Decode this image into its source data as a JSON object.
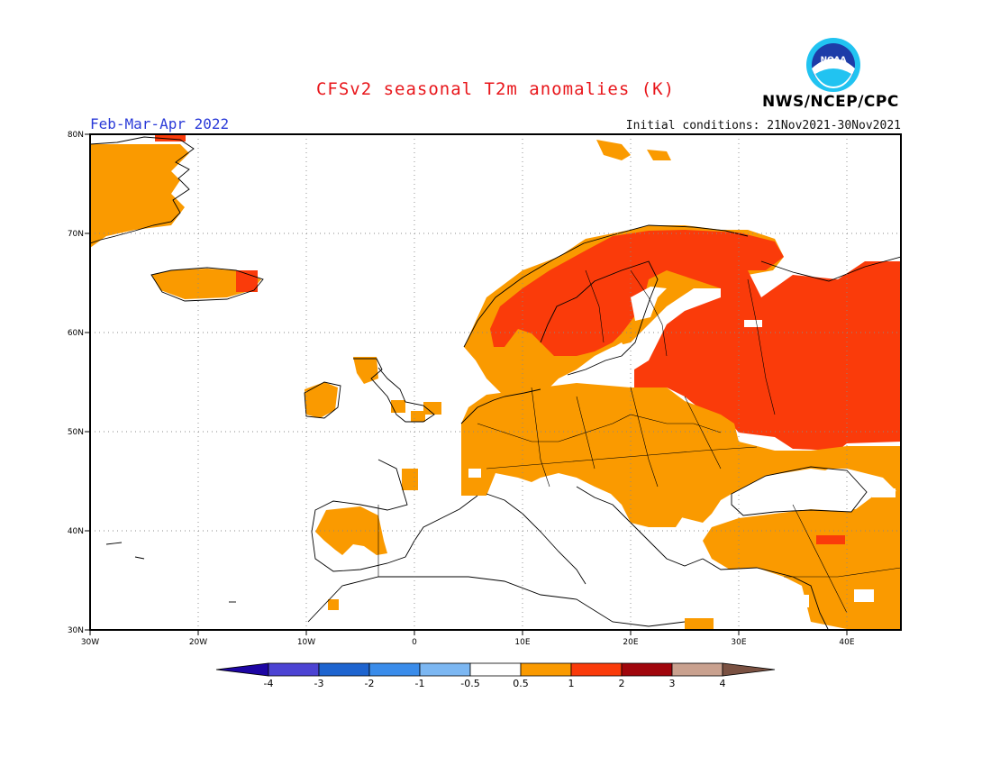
{
  "header": {
    "title": "CFSv2 seasonal T2m anomalies (K)",
    "period": "Feb-Mar-Apr 2022",
    "initial_conditions": "Initial conditions: 21Nov2021-30Nov2021",
    "agency": "NWS/NCEP/CPC",
    "logo_text": "NOAA"
  },
  "map": {
    "lon_range": [
      -30,
      45
    ],
    "lat_range": [
      30,
      80
    ],
    "lon_ticks": [
      "30W",
      "20W",
      "10W",
      "0",
      "10E",
      "20E",
      "30E",
      "40E"
    ],
    "lat_ticks": [
      "80N",
      "70N",
      "60N",
      "50N",
      "40N",
      "30N"
    ],
    "grid": "dotted"
  },
  "legend": {
    "ticks": [
      "-4",
      "-3",
      "-2",
      "-1",
      "-0.5",
      "0.5",
      "1",
      "2",
      "3",
      "4"
    ],
    "colors": [
      "#1d05a3",
      "#4c43d3",
      "#1e64cf",
      "#3a8cea",
      "#7cb7f2",
      "#ffffff",
      "#fa9a00",
      "#fa3b0a",
      "#a0060c",
      "#c9a18f",
      "#7a5142"
    ]
  },
  "colors": {
    "title": "#e8161b",
    "period": "#2b3bd8",
    "anomaly_0_5_to_1": "#fa9a00",
    "anomaly_1_to_2": "#fa3b0a",
    "anomaly_2_to_3": "#a0060c"
  }
}
